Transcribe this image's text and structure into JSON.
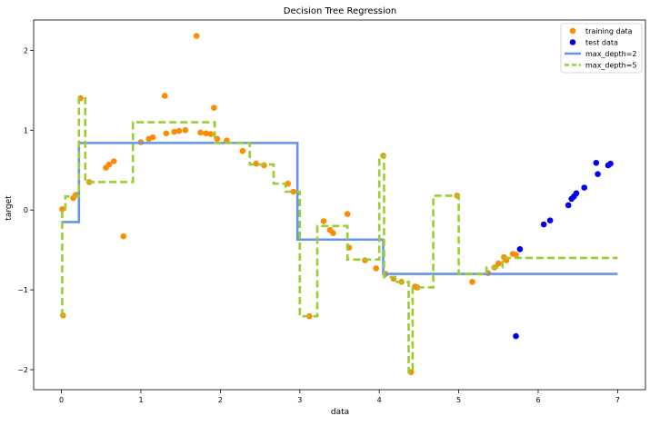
{
  "chart_data": {
    "type": "scatter",
    "title": "Decision Tree Regression",
    "xlabel": "data",
    "ylabel": "target",
    "xlim": [
      -0.35,
      7.35
    ],
    "ylim": [
      -2.25,
      2.38
    ],
    "x_ticks": [
      0,
      1,
      2,
      3,
      4,
      5,
      6,
      7
    ],
    "y_ticks": [
      -2,
      -1,
      0,
      1,
      2
    ],
    "x_tick_labels": [
      "0",
      "1",
      "2",
      "3",
      "4",
      "5",
      "6",
      "7"
    ],
    "y_tick_labels": [
      "−2",
      "−1",
      "0",
      "1",
      "2"
    ],
    "grid": false,
    "legend_position": "top-right",
    "colors": {
      "training": "#ff8c00",
      "test": "#0000ee",
      "depth2": "#6495ed",
      "depth5": "#9acd32"
    },
    "series": [
      {
        "name": "training data",
        "kind": "scatter",
        "x": [
          0.01,
          0.02,
          0.15,
          0.18,
          0.24,
          0.35,
          0.56,
          0.6,
          0.66,
          0.78,
          1.0,
          1.1,
          1.15,
          1.3,
          1.32,
          1.42,
          1.48,
          1.56,
          1.7,
          1.75,
          1.82,
          1.88,
          1.92,
          1.96,
          2.08,
          2.28,
          2.45,
          2.55,
          2.85,
          2.92,
          3.12,
          3.3,
          3.38,
          3.42,
          3.6,
          3.62,
          3.82,
          3.96,
          4.05,
          4.08,
          4.18,
          4.28,
          4.4,
          4.45,
          4.48,
          4.98,
          5.17,
          5.37,
          5.45,
          5.5,
          5.57,
          5.6,
          5.68,
          5.72
        ],
        "y": [
          0.01,
          -1.32,
          0.15,
          0.19,
          1.4,
          0.35,
          0.53,
          0.57,
          0.61,
          -0.33,
          0.85,
          0.89,
          0.91,
          1.43,
          0.96,
          0.98,
          0.99,
          1.0,
          2.18,
          0.97,
          0.96,
          0.95,
          1.28,
          0.89,
          0.87,
          0.74,
          0.58,
          0.56,
          0.33,
          0.23,
          -1.33,
          -0.14,
          -0.25,
          -0.29,
          -0.05,
          -0.47,
          -0.63,
          -0.73,
          0.68,
          -0.8,
          -0.86,
          -0.9,
          -2.03,
          -0.96,
          -0.97,
          0.18,
          -0.9,
          -0.79,
          -0.72,
          -0.67,
          -0.59,
          -0.63,
          -0.55,
          -0.56
        ]
      },
      {
        "name": "test data",
        "kind": "scatter",
        "x": [
          5.72,
          5.77,
          6.07,
          6.15,
          6.38,
          6.42,
          6.45,
          6.48,
          6.58,
          6.73,
          6.75,
          6.88,
          6.91
        ],
        "y": [
          -1.58,
          -0.49,
          -0.18,
          -0.13,
          0.06,
          0.14,
          0.17,
          0.21,
          0.28,
          0.59,
          0.45,
          0.56,
          0.58
        ]
      },
      {
        "name": "max_depth=2",
        "kind": "step",
        "x": [
          0.0,
          0.22,
          0.22,
          2.97,
          2.97,
          4.05,
          4.05,
          7.0
        ],
        "y": [
          -0.15,
          -0.15,
          0.84,
          0.84,
          -0.37,
          -0.37,
          -0.8,
          -0.8
        ]
      },
      {
        "name": "max_depth=5",
        "kind": "step",
        "x": [
          0.0,
          0.01,
          0.01,
          0.05,
          0.05,
          0.22,
          0.22,
          0.3,
          0.3,
          0.9,
          0.9,
          1.93,
          1.93,
          2.37,
          2.37,
          2.67,
          2.67,
          2.82,
          2.82,
          3.0,
          3.0,
          3.22,
          3.22,
          3.6,
          3.6,
          4.0,
          4.0,
          4.06,
          4.06,
          4.2,
          4.2,
          4.37,
          4.37,
          4.42,
          4.42,
          4.68,
          4.68,
          5.0,
          5.0,
          5.35,
          5.35,
          5.55,
          5.55,
          7.0
        ],
        "y": [
          -1.32,
          -1.32,
          0.01,
          0.01,
          0.17,
          0.17,
          1.4,
          1.4,
          0.35,
          0.35,
          1.1,
          1.1,
          0.84,
          0.84,
          0.57,
          0.57,
          0.33,
          0.33,
          0.23,
          0.23,
          -1.33,
          -1.33,
          -0.2,
          -0.2,
          -0.62,
          -0.62,
          0.68,
          0.68,
          -0.84,
          -0.84,
          -0.9,
          -0.9,
          -2.03,
          -2.03,
          -0.97,
          -0.97,
          0.18,
          0.18,
          -0.8,
          -0.8,
          -0.72,
          -0.72,
          -0.6,
          -0.6
        ]
      }
    ]
  }
}
